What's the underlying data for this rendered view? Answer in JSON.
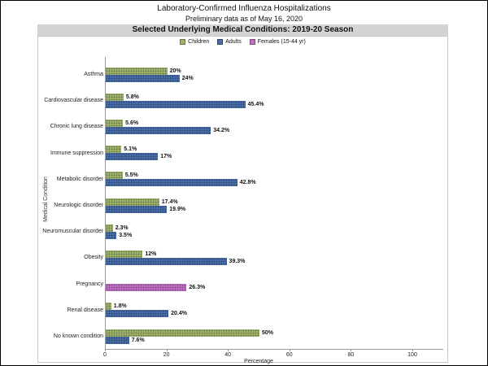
{
  "page": {
    "title": "Laboratory-Confirmed Influenza Hospitalizations",
    "subtitle": "Preliminary data as of May 16, 2020",
    "banner": "Selected Underlying Medical Conditions: 2019-20 Season"
  },
  "colors": {
    "children": "#9FB468",
    "adults": "#486CA5",
    "females": "#C06FC2",
    "banner_bg": "#D3D3D3",
    "frame_border": "#C8C8C8",
    "axis": "#9A9A9A"
  },
  "chart_data": {
    "type": "bar",
    "orientation": "horizontal",
    "title": "Selected Underlying Medical Conditions: 2019-20 Season",
    "xlabel": "Percentage",
    "ylabel": "Medical Condition",
    "xlim": [
      0,
      100
    ],
    "xticks": [
      0,
      20,
      40,
      60,
      80,
      100
    ],
    "grid": false,
    "legend_position": "top",
    "categories": [
      "Asthma",
      "Cardiovascular disease",
      "Chronic lung disease",
      "Immune suppression",
      "Metabolic disorder",
      "Neurologic disorder",
      "Neuromuscular disorder",
      "Obesity",
      "Pregnancy",
      "Renal disease",
      "No known condition"
    ],
    "series": [
      {
        "name": "Children",
        "color_key": "children",
        "values": [
          20,
          5.8,
          5.6,
          5.1,
          5.5,
          17.4,
          2.3,
          12,
          null,
          1.8,
          50
        ]
      },
      {
        "name": "Adults",
        "color_key": "adults",
        "values": [
          24,
          45.4,
          34.2,
          17,
          42.8,
          19.9,
          3.5,
          39.3,
          null,
          20.4,
          7.6
        ]
      },
      {
        "name": "Females (15-44 yr)",
        "color_key": "females",
        "values": [
          null,
          null,
          null,
          null,
          null,
          null,
          null,
          null,
          26.3,
          null,
          null
        ]
      }
    ]
  }
}
